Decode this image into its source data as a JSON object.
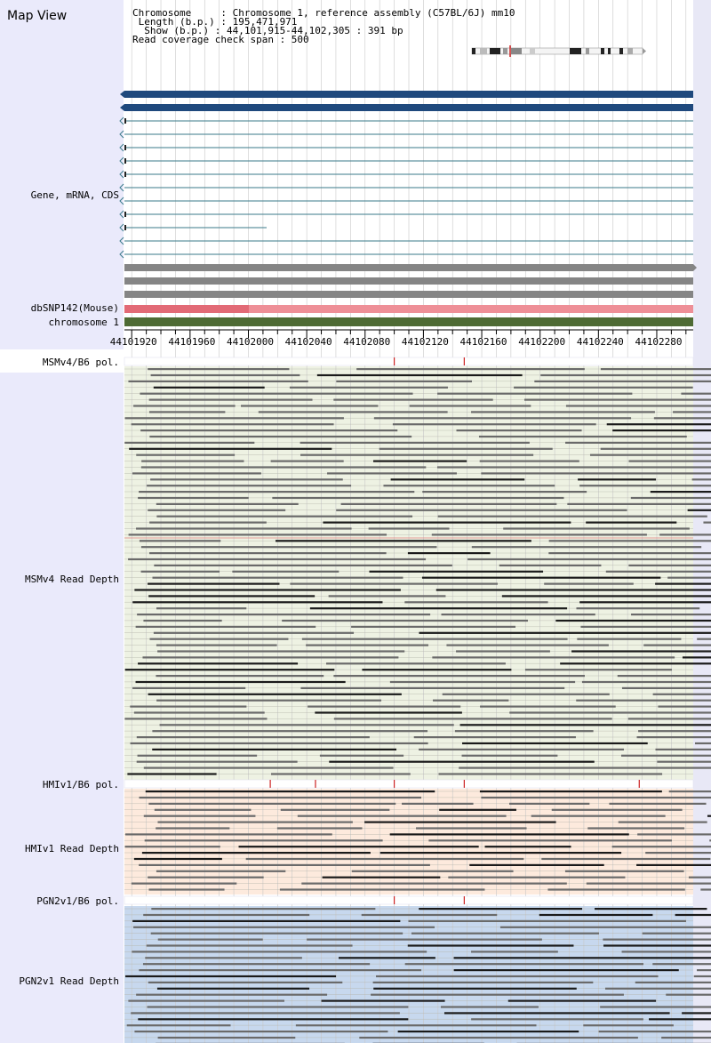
{
  "title": "Map View",
  "info": {
    "chromosome_line": "Chromosome     : Chromosome 1, reference assembly (C57BL/6J) mm10",
    "length_line": " Length (b.p.) : 195,471,971",
    "show_line": "  Show (b.p.) : 44,101,915-44,102,305 : 391 bp",
    "span_line": "Read coverage check span : 500"
  },
  "tracks": {
    "gene_label": "Gene, mRNA, CDS",
    "dbsnp_label": "dbSNP142(Mouse)",
    "chromosome_label": "chromosome 1",
    "msm_pol_label": "MSMv4/B6 pol.",
    "msm_depth_label": "MSMv4 Read Depth",
    "hmi_pol_label": "HMIv1/B6 pol.",
    "hmi_depth_label": "HMIv1 Read Depth",
    "pgn_pol_label": "PGN2v1/B6 pol.",
    "pgn_depth_label": "PGN2v1 Read Depth"
  },
  "ruler": {
    "ticks": [
      "44101920",
      "44101960",
      "44102000",
      "44102040",
      "44102080",
      "44102120",
      "44102160",
      "44102200",
      "44102240",
      "44102280"
    ]
  },
  "colors": {
    "gene_bar": "#1f497d",
    "transcript_line": "#3a7a8a",
    "gray_bar": "#858585",
    "snp_bar": "#ee8f97",
    "snp_dark": "#e26a76",
    "chromosome_bar": "#4e6b34",
    "msm_bg": "#eef2e3",
    "hmi_bg": "#fdeadd",
    "pgn_bg": "#c7d8ee",
    "pol_mark": "#cc2222",
    "read": "#6a6a6a",
    "read_dark": "#1a1a1a"
  },
  "polymorphisms": {
    "msm": [
      44102100,
      44102148
    ],
    "hmi": [
      44102015,
      44102046,
      44102100,
      44102148,
      44102268
    ],
    "pgn": [
      44102100,
      44102148
    ]
  }
}
